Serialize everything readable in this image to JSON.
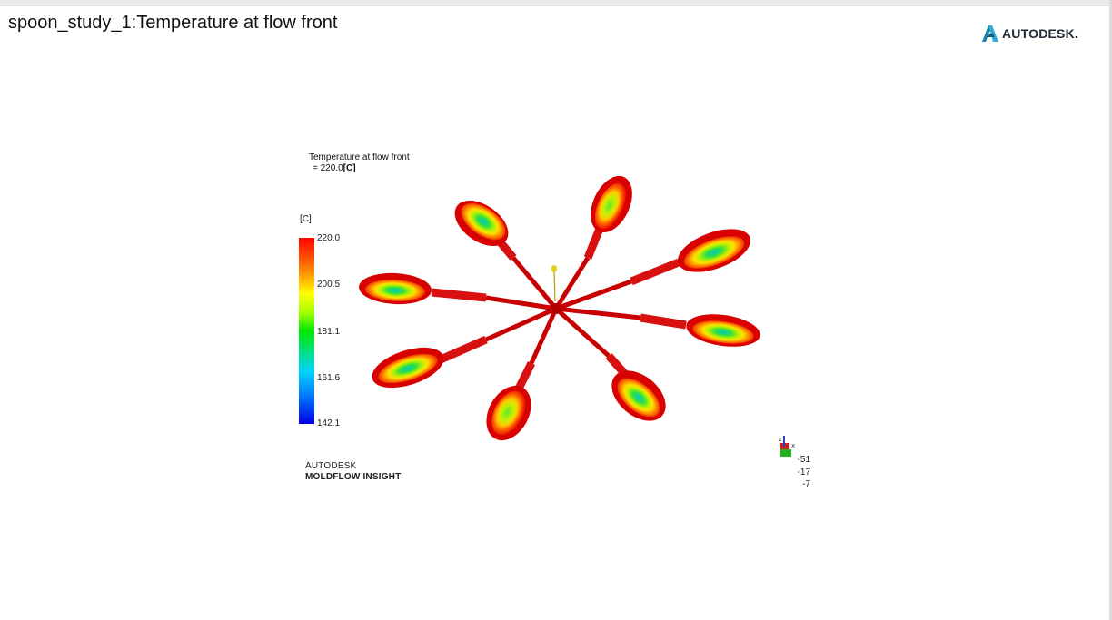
{
  "study_title": "spoon_study_1:Temperature at flow front",
  "brand": {
    "name": "AUTODESK.",
    "logo_icon": "autodesk-a-logo-icon",
    "accent": "#1a7fa8"
  },
  "plot": {
    "result_name": "Temperature at flow front",
    "result_value_prefix": "= 220.0",
    "result_unit": "[C]"
  },
  "legend": {
    "unit": "[C]",
    "ticks": [
      "220.0",
      "200.5",
      "181.1",
      "161.6",
      "142.1"
    ],
    "max_color": "#ff0000",
    "min_color": "#0000e6"
  },
  "product_logo": {
    "line1": "AUTODESK",
    "line2": "MOLDFLOW INSIGHT"
  },
  "triad": {
    "icon": "axis-triad-icon",
    "coords": [
      "-51",
      "-17",
      "-7"
    ]
  }
}
